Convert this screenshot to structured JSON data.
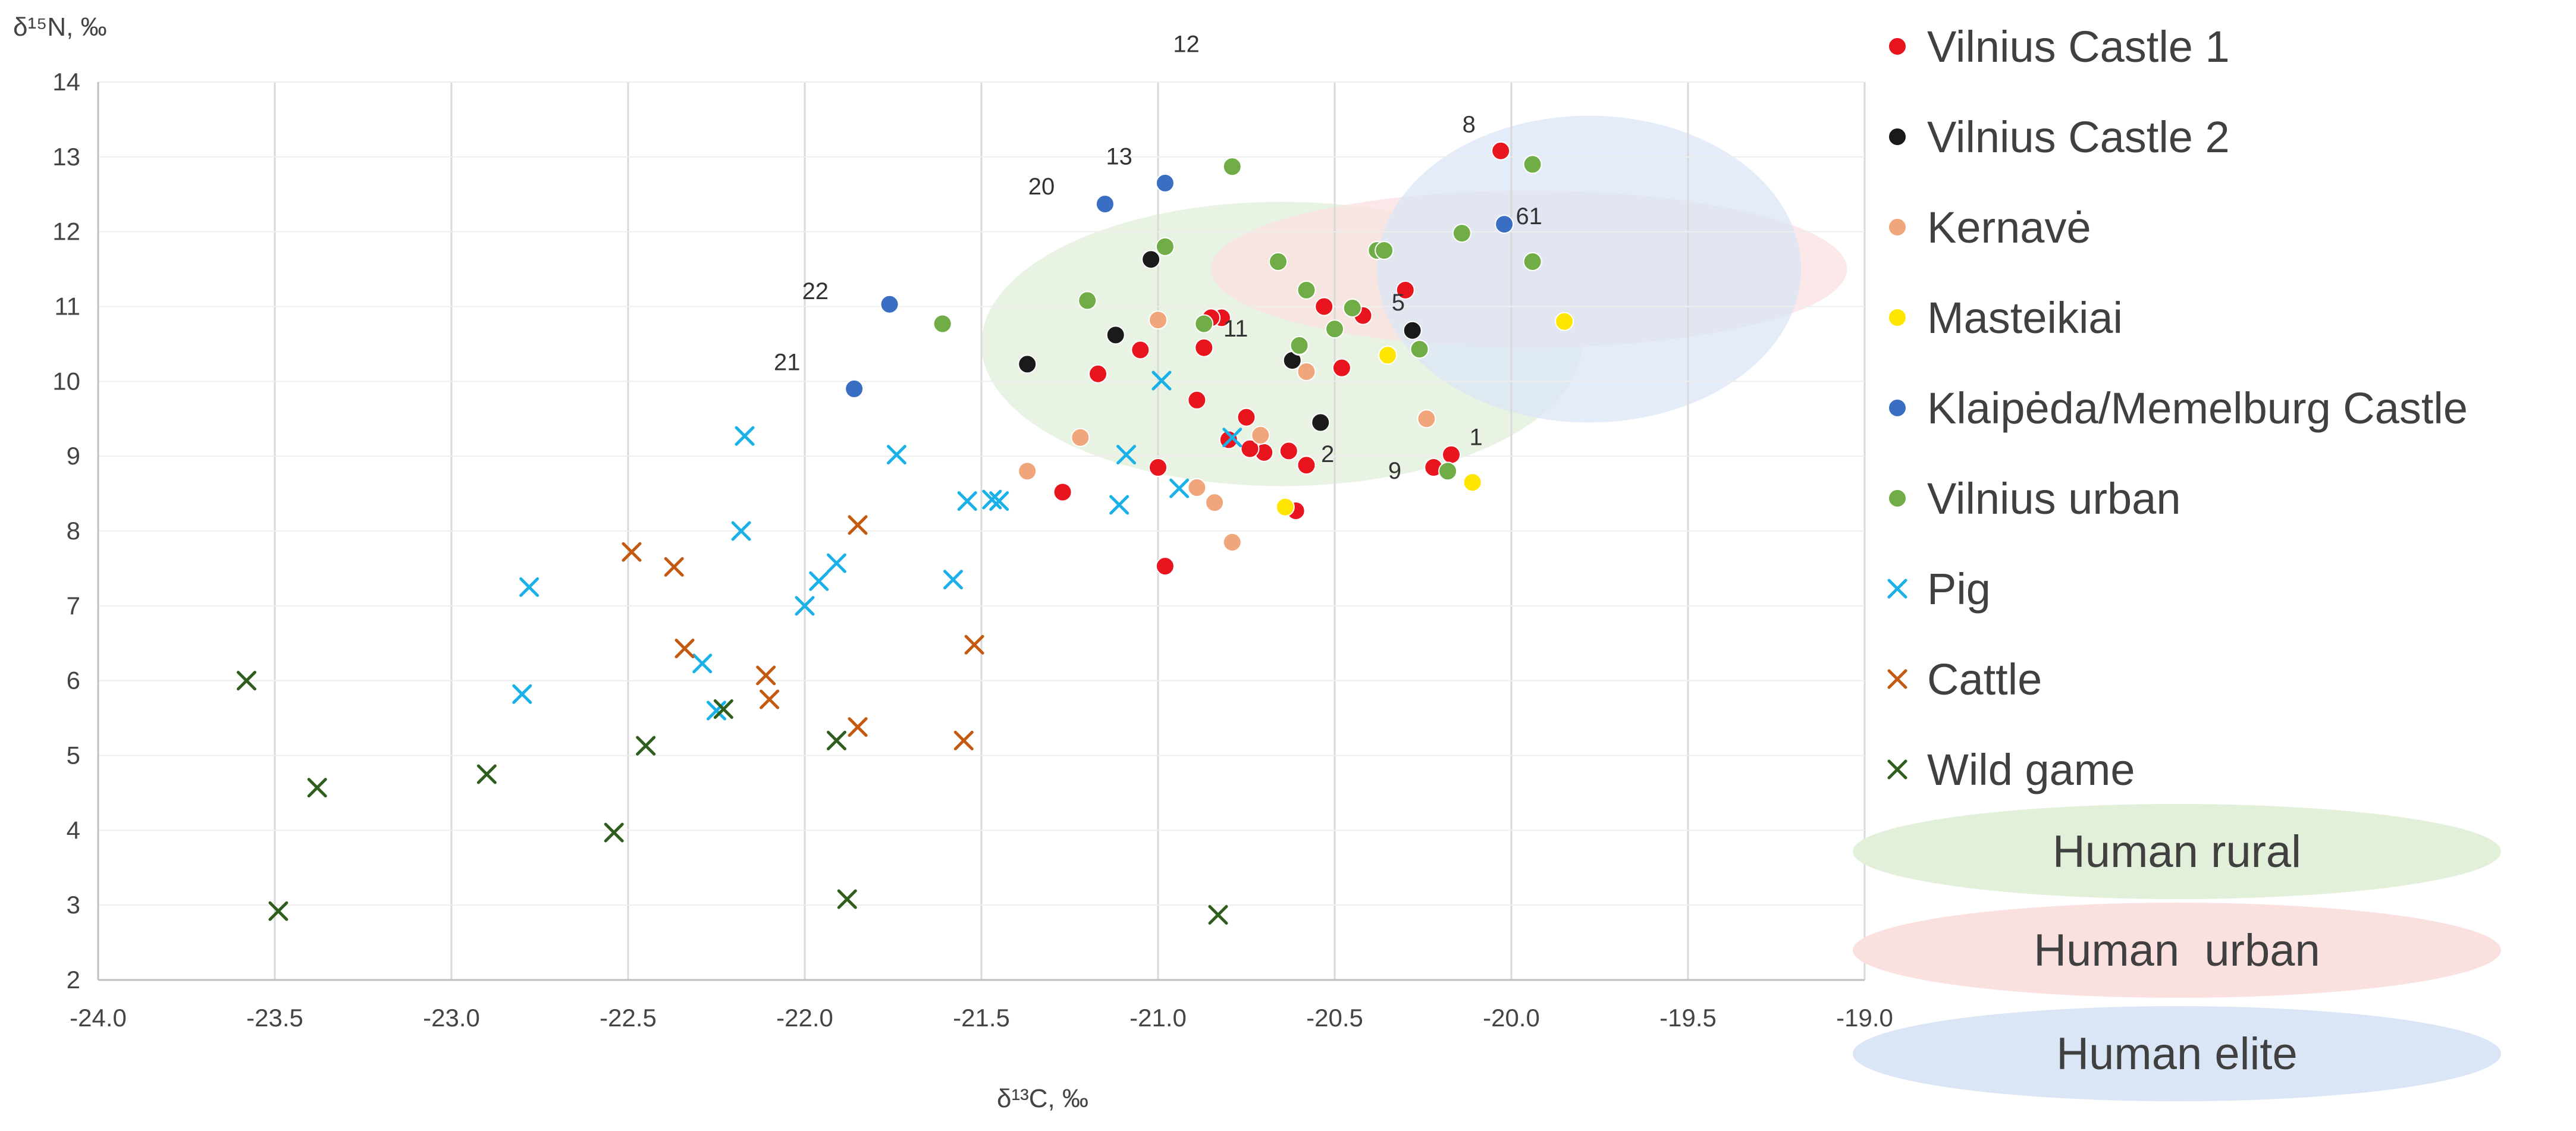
{
  "chart_data": {
    "type": "scatter",
    "title": "",
    "xlabel": "δ¹³C, ‰",
    "ylabel": "δ¹⁵N, ‰",
    "xlim": [
      -24.0,
      -19.0
    ],
    "ylim": [
      2,
      14
    ],
    "x_ticks": [
      "-24.0",
      "-23.5",
      "-23.0",
      "-22.5",
      "-22.0",
      "-21.5",
      "-21.0",
      "-20.5",
      "-20.0",
      "-19.5",
      "-19.0"
    ],
    "y_ticks": [
      "2",
      "3",
      "4",
      "5",
      "6",
      "7",
      "8",
      "9",
      "10",
      "11",
      "12",
      "13",
      "14"
    ],
    "grid": "vertical",
    "colors": {
      "castle1": "#e8141e",
      "castle2": "#1a1a1a",
      "kernave": "#f0a57a",
      "masteikiai": "#ffe600",
      "klaipeda": "#3a6ec2",
      "urban": "#70ad47",
      "pig": "#1ab0e8",
      "cattle": "#c45a11",
      "wildgame": "#2e5e1e",
      "rural_fill": "#e2efd9",
      "urbanh_fill": "#fbe0e0",
      "elite_fill": "#dae6f5"
    },
    "ellipses": [
      {
        "name": "Human rural",
        "cx": -20.65,
        "cy": 10.5,
        "rx": 0.85,
        "ry": 1.9,
        "color_key": "rural_fill"
      },
      {
        "name": "Human  urban",
        "cx": -19.95,
        "cy": 11.5,
        "rx": 0.9,
        "ry": 1.05,
        "color_key": "urbanh_fill"
      },
      {
        "name": "Human elite",
        "cx": -19.78,
        "cy": 11.5,
        "rx": 0.6,
        "ry": 2.05,
        "color_key": "elite_fill"
      }
    ],
    "series": [
      {
        "name": "Vilnius Castle 1",
        "marker": "circle",
        "color_key": "castle1",
        "points": [
          [
            -20.82,
            10.85
          ],
          [
            -20.87,
            10.45
          ],
          [
            -20.53,
            11.0
          ],
          [
            -20.42,
            10.88
          ],
          [
            -20.48,
            10.18
          ],
          [
            -20.3,
            11.22
          ],
          [
            -21.05,
            10.42
          ],
          [
            -21.17,
            10.1
          ],
          [
            -20.89,
            9.75
          ],
          [
            -20.75,
            9.52
          ],
          [
            -20.8,
            9.22
          ],
          [
            -20.7,
            9.05
          ],
          [
            -20.74,
            9.1
          ],
          [
            -20.63,
            9.07
          ],
          [
            -20.58,
            8.88
          ],
          [
            -21.0,
            8.85
          ],
          [
            -21.27,
            8.52
          ],
          [
            -20.61,
            8.27
          ],
          [
            -20.98,
            7.53
          ],
          [
            -20.22,
            8.85
          ],
          [
            -20.17,
            9.02
          ],
          [
            -20.03,
            13.08
          ],
          [
            -20.85,
            10.85
          ]
        ]
      },
      {
        "name": "Vilnius Castle 2",
        "marker": "circle",
        "color_key": "castle2",
        "points": [
          [
            -21.02,
            11.63
          ],
          [
            -21.12,
            10.62
          ],
          [
            -21.37,
            10.23
          ],
          [
            -20.62,
            10.28
          ],
          [
            -20.6,
            10.47
          ],
          [
            -20.54,
            9.45
          ],
          [
            -20.28,
            10.68
          ]
        ]
      },
      {
        "name": "Kernavė",
        "marker": "circle",
        "color_key": "kernave",
        "points": [
          [
            -21.0,
            10.82
          ],
          [
            -20.58,
            10.13
          ],
          [
            -21.22,
            9.25
          ],
          [
            -20.71,
            9.28
          ],
          [
            -21.37,
            8.8
          ],
          [
            -20.89,
            8.58
          ],
          [
            -20.84,
            8.38
          ],
          [
            -20.79,
            7.85
          ],
          [
            -20.24,
            9.5
          ]
        ]
      },
      {
        "name": "Masteikiai",
        "marker": "circle",
        "color_key": "masteikiai",
        "points": [
          [
            -20.35,
            10.35
          ],
          [
            -19.85,
            10.8
          ],
          [
            -20.11,
            8.65
          ],
          [
            -20.64,
            8.32
          ]
        ]
      },
      {
        "name": "Klaipėda/Memelburg Castle",
        "marker": "circle",
        "color_key": "klaipeda",
        "points": [
          [
            -20.98,
            12.65
          ],
          [
            -21.15,
            12.37
          ],
          [
            -21.76,
            11.03
          ],
          [
            -21.86,
            9.9
          ],
          [
            -20.02,
            12.1
          ]
        ]
      },
      {
        "name": "Vilnius urban",
        "marker": "circle",
        "color_key": "urban",
        "points": [
          [
            -20.79,
            12.87
          ],
          [
            -20.98,
            11.8
          ],
          [
            -20.66,
            11.6
          ],
          [
            -21.2,
            11.08
          ],
          [
            -21.61,
            10.77
          ],
          [
            -20.87,
            10.77
          ],
          [
            -20.58,
            11.22
          ],
          [
            -20.45,
            10.98
          ],
          [
            -20.5,
            10.7
          ],
          [
            -20.6,
            10.48
          ],
          [
            -20.38,
            11.75
          ],
          [
            -20.36,
            11.75
          ],
          [
            -20.14,
            11.98
          ],
          [
            -19.94,
            12.9
          ],
          [
            -19.94,
            11.6
          ],
          [
            -20.26,
            10.43
          ],
          [
            -20.18,
            8.8
          ]
        ]
      },
      {
        "name": "Pig",
        "marker": "x",
        "color_key": "pig",
        "points": [
          [
            -22.17,
            9.27
          ],
          [
            -21.74,
            9.02
          ],
          [
            -20.99,
            10.01
          ],
          [
            -20.79,
            9.25
          ],
          [
            -21.09,
            9.02
          ],
          [
            -21.54,
            8.4
          ],
          [
            -21.47,
            8.42
          ],
          [
            -21.45,
            8.4
          ],
          [
            -21.11,
            8.35
          ],
          [
            -20.94,
            8.57
          ],
          [
            -22.18,
            8.0
          ],
          [
            -22.78,
            7.25
          ],
          [
            -21.91,
            7.57
          ],
          [
            -21.96,
            7.33
          ],
          [
            -22.0,
            7.0
          ],
          [
            -21.58,
            7.35
          ],
          [
            -22.8,
            5.82
          ],
          [
            -22.29,
            6.23
          ],
          [
            -22.25,
            5.6
          ]
        ]
      },
      {
        "name": "Cattle",
        "marker": "x",
        "color_key": "cattle",
        "points": [
          [
            -22.49,
            7.72
          ],
          [
            -22.37,
            7.52
          ],
          [
            -21.85,
            8.08
          ],
          [
            -22.34,
            6.43
          ],
          [
            -21.52,
            6.48
          ],
          [
            -22.11,
            6.07
          ],
          [
            -22.1,
            5.75
          ],
          [
            -21.85,
            5.38
          ],
          [
            -21.55,
            5.2
          ]
        ]
      },
      {
        "name": "Wild game",
        "marker": "x",
        "color_key": "wildgame",
        "points": [
          [
            -23.58,
            6.0
          ],
          [
            -23.38,
            4.57
          ],
          [
            -22.9,
            4.75
          ],
          [
            -22.45,
            5.13
          ],
          [
            -22.23,
            5.62
          ],
          [
            -21.91,
            5.2
          ],
          [
            -22.54,
            3.97
          ],
          [
            -23.49,
            2.92
          ],
          [
            -21.88,
            3.08
          ],
          [
            -20.83,
            2.87
          ]
        ]
      }
    ],
    "point_labels": [
      {
        "text": "8",
        "x": -20.12,
        "y": 13.33
      },
      {
        "text": "13",
        "x": -21.11,
        "y": 12.9
      },
      {
        "text": "20",
        "x": -21.33,
        "y": 12.5
      },
      {
        "text": "61",
        "x": -19.95,
        "y": 12.1
      },
      {
        "text": "22",
        "x": -21.97,
        "y": 11.1
      },
      {
        "text": "5",
        "x": -20.32,
        "y": 10.95
      },
      {
        "text": "11",
        "x": -20.78,
        "y": 10.6
      },
      {
        "text": "21",
        "x": -22.05,
        "y": 10.15
      },
      {
        "text": "1",
        "x": -20.1,
        "y": 9.15
      },
      {
        "text": "2",
        "x": -20.52,
        "y": 8.92
      },
      {
        "text": "9",
        "x": -20.33,
        "y": 8.7
      },
      {
        "text": "12",
        "x": -20.92,
        "y": 14.4
      }
    ]
  }
}
